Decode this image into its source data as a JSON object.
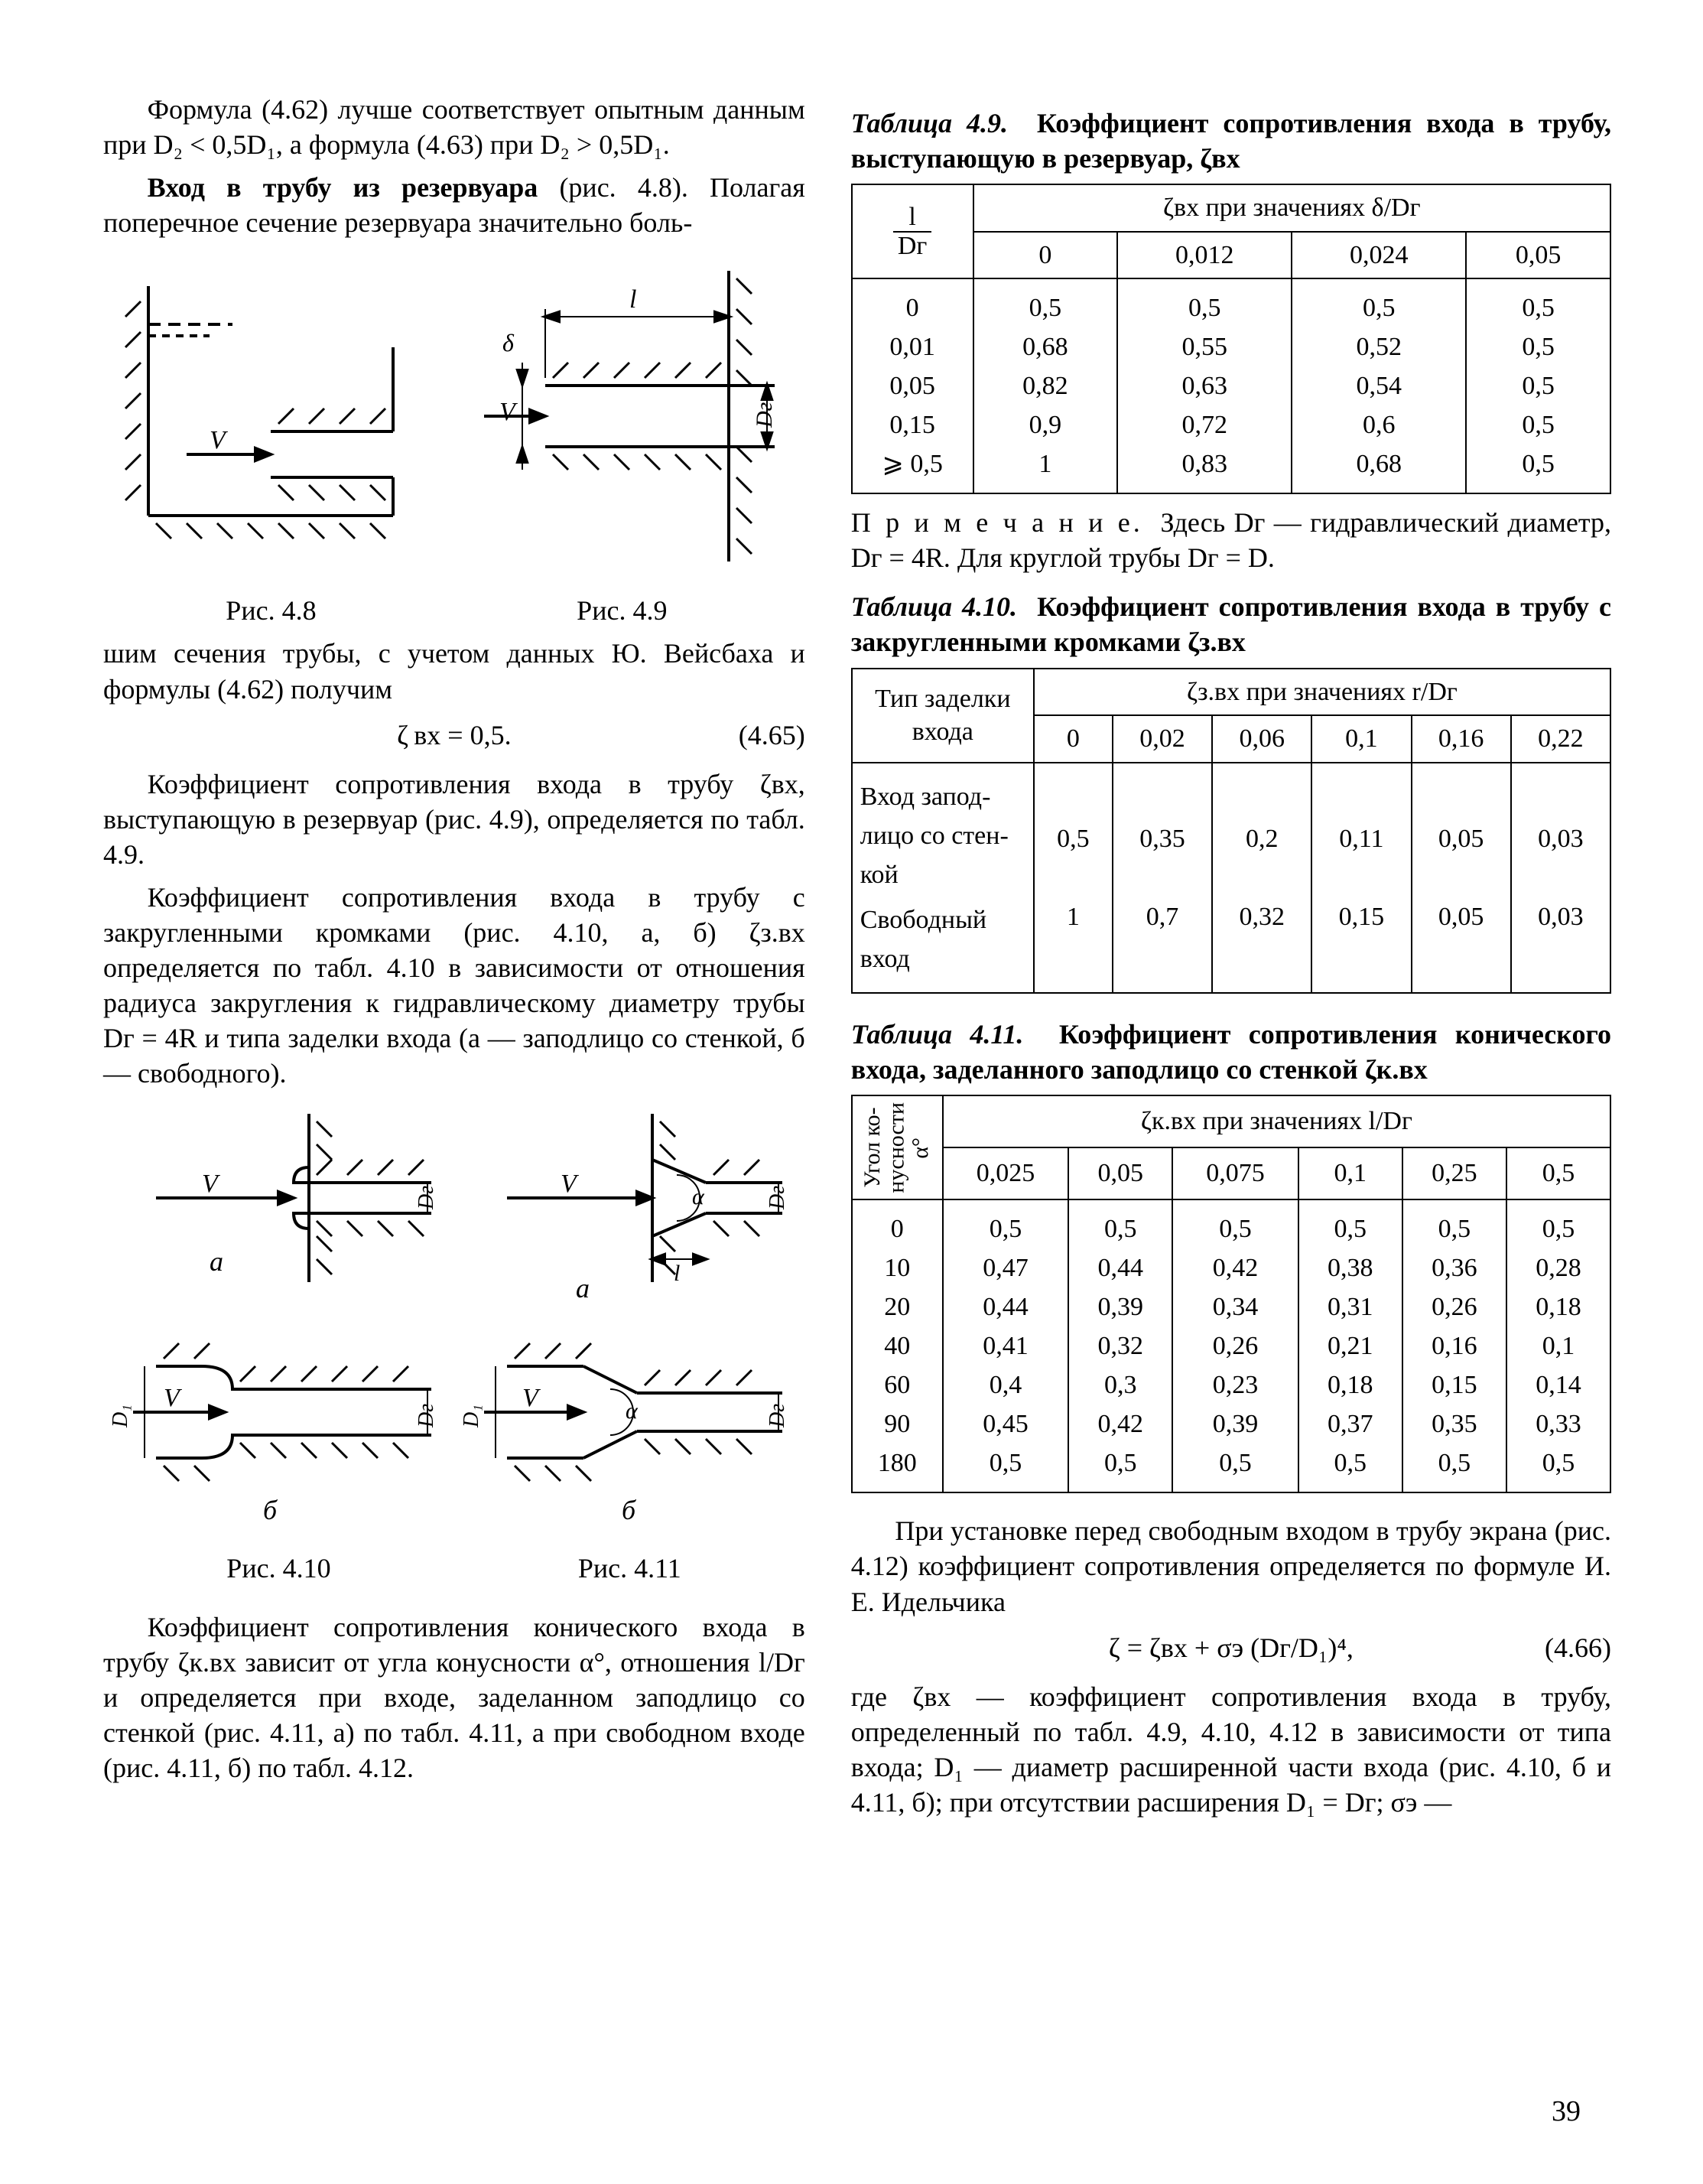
{
  "leftCol": {
    "p1": "Формула (4.62) лучше соответствует опытным данным при D₂ < 0,5D₁, а формула (4.63) при D₂ > 0,5D₁.",
    "p2a": "Вход в трубу из резервуара",
    "p2b": " (рис. 4.8). Полагая поперечное сечение резервуара значительно боль-",
    "fig48": "Рис. 4.8",
    "fig49": "Рис. 4.9",
    "p3": "шим сечения трубы, с учетом данных Ю. Вейсбаха и формулы (4.62) получим",
    "eq1": "ζ вх = 0,5.",
    "eq1n": "(4.65)",
    "p4": "Коэффициент сопротивления входа в трубу ζвх, выступающую в резервуар (рис. 4.9), определяется по табл. 4.9.",
    "p5": "Коэффициент сопротивления входа в трубу с закругленными кромками (рис. 4.10, а, б) ζз.вх определяется по табл. 4.10 в зависимости от отношения радиуса закругления к гидравлическому диаметру трубы Dг = 4R и типа заделки входа (а — заподлицо со стенкой, б — свободного).",
    "fig410": "Рис. 4.10",
    "fig411": "Рис. 4.11",
    "p6": "Коэффициент сопротивления конического входа в трубу ζк.вх зависит от угла конусности α°, отношения l/Dг и определяется при входе, заделанном заподлицо со стенкой (рис. 4.11, а) по табл. 4.11, а при свободном входе (рис. 4.11, б) по табл. 4.12."
  },
  "rightCol": {
    "t49_title_a": "Таблица 4.9.",
    "t49_title_b": "Коэффициент сопротивления входа в трубу, выступающую в резервуар, ζвх",
    "t49_head_span": "ζвх  при значениях  δ/Dг",
    "t49_rowhead_num": "l",
    "t49_rowhead_den": "Dг",
    "t49_cols": [
      "0",
      "0,012",
      "0,024",
      "0,05"
    ],
    "t49_row_labels": [
      "0",
      "0,01",
      "0,05",
      "0,15",
      "⩾ 0,5"
    ],
    "t49_vals": [
      [
        "0,5",
        "0,5",
        "0,5",
        "0,5"
      ],
      [
        "0,68",
        "0,55",
        "0,52",
        "0,5"
      ],
      [
        "0,82",
        "0,63",
        "0,54",
        "0,5"
      ],
      [
        "0,9",
        "0,72",
        "0,6",
        "0,5"
      ],
      [
        "1",
        "0,83",
        "0,68",
        "0,5"
      ]
    ],
    "note49a": "П р и м е ч а н и е.",
    "note49b": "Здесь Dг — гидравлический диаметр, Dг = 4R. Для круглой трубы Dг = D.",
    "t410_title_a": "Таблица 4.10.",
    "t410_title_b": "Коэффициент сопротивления входа в трубу с закругленными кромками ζз.вх",
    "t410_head_span": "ζз.вх   при значениях r/Dг",
    "t410_rowhead": "Тип заделки входа",
    "t410_cols": [
      "0",
      "0,02",
      "0,06",
      "0,1",
      "0,16",
      "0,22"
    ],
    "t410_r1_label": "Вход запод­лицо со стен­кой",
    "t410_r1_vals": [
      "0,5",
      "0,35",
      "0,2",
      "0,11",
      "0,05",
      "0,03"
    ],
    "t410_r2_label": "Свободный вход",
    "t410_r2_vals": [
      "1",
      "0,7",
      "0,32",
      "0,15",
      "0,05",
      "0,03"
    ],
    "t411_title_a": "Таблица 4.11.",
    "t411_title_b": "Коэффициент сопротивления конического входа, заделанного заподлицо со стенкой ζк.вх",
    "t411_head_span": "ζк.вх   при значениях l/Dг",
    "t411_rowhead": "Угол ко-\nнусности\nα°",
    "t411_cols": [
      "0,025",
      "0,05",
      "0,075",
      "0,1",
      "0,25",
      "0,5"
    ],
    "t411_row_labels": [
      "0",
      "10",
      "20",
      "40",
      "60",
      "90",
      "180"
    ],
    "t411_vals": [
      [
        "0,5",
        "0,5",
        "0,5",
        "0,5",
        "0,5",
        "0,5"
      ],
      [
        "0,47",
        "0,44",
        "0,42",
        "0,38",
        "0,36",
        "0,28"
      ],
      [
        "0,44",
        "0,39",
        "0,34",
        "0,31",
        "0,26",
        "0,18"
      ],
      [
        "0,41",
        "0,32",
        "0,26",
        "0,21",
        "0,16",
        "0,1"
      ],
      [
        "0,4",
        "0,3",
        "0,23",
        "0,18",
        "0,15",
        "0,14"
      ],
      [
        "0,45",
        "0,42",
        "0,39",
        "0,37",
        "0,35",
        "0,33"
      ],
      [
        "0,5",
        "0,5",
        "0,5",
        "0,5",
        "0,5",
        "0,5"
      ]
    ],
    "p7": "При установке перед свободным входом в трубу экрана (рис. 4.12) коэффициент сопротивления определяется по формуле И. Е. Идельчика",
    "eq2": "ζ = ζвх + σэ (Dг/D₁)⁴,",
    "eq2n": "(4.66)",
    "p8": "где ζвх — коэффициент сопротивления входа в трубу, определенный по табл. 4.9, 4.10, 4.12 в зависимости от типа входа; D₁ — диаметр расширенной части входа (рис. 4.10, б и 4.11, б); при отсутствии расширения D₁ = Dг; σэ —"
  },
  "pageNumber": "39",
  "svg": {
    "stroke": "#000000",
    "labels": {
      "V": "V",
      "Dg": "Dг",
      "l": "l",
      "delta": "δ",
      "alpha": "α",
      "D1": "D₁",
      "a": "а",
      "b": "б"
    }
  }
}
